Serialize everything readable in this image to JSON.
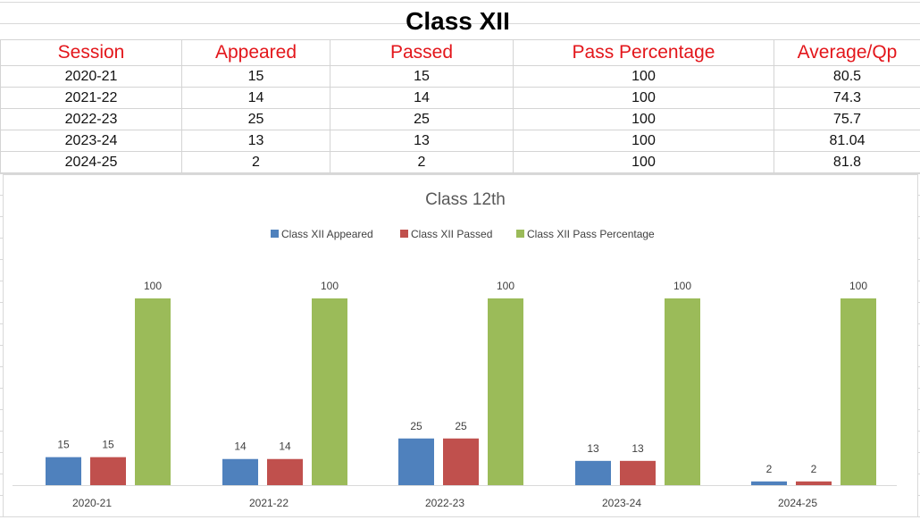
{
  "page": {
    "title": "Class XII"
  },
  "table": {
    "headers": [
      "Session",
      "Appeared",
      "Passed",
      "Pass Percentage",
      "Average/Qp"
    ],
    "rows": [
      [
        "2020-21",
        "15",
        "15",
        "100",
        "80.5"
      ],
      [
        "2021-22",
        "14",
        "14",
        "100",
        "74.3"
      ],
      [
        "2022-23",
        "25",
        "25",
        "100",
        "75.7"
      ],
      [
        "2023-24",
        "13",
        "13",
        "100",
        "81.04"
      ],
      [
        "2024-25",
        "2",
        "2",
        "100",
        "81.8"
      ]
    ]
  },
  "chart_data": {
    "type": "bar",
    "title": "Class 12th",
    "categories": [
      "2020-21",
      "2021-22",
      "2022-23",
      "2023-24",
      "2024-25"
    ],
    "series": [
      {
        "name": "Class XII Appeared",
        "color": "#4f81bd",
        "values": [
          15,
          14,
          25,
          13,
          2
        ]
      },
      {
        "name": "Class XII Passed",
        "color": "#c0504d",
        "values": [
          15,
          14,
          25,
          13,
          2
        ]
      },
      {
        "name": "Class XII Pass Percentage",
        "color": "#9bbb59",
        "values": [
          100,
          100,
          100,
          100,
          100
        ]
      }
    ],
    "ylim": [
      0,
      100
    ],
    "legend_position": "top",
    "grid": false,
    "data_labels": true
  }
}
